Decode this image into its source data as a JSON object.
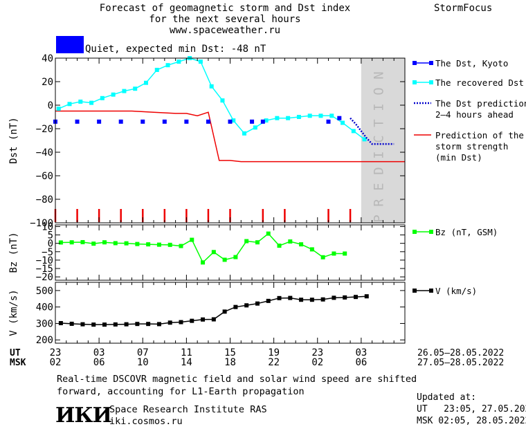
{
  "header": {
    "title_lines": [
      "Forecast of geomagnetic storm and Dst index",
      "for the next several hours",
      "www.spaceweather.ru"
    ],
    "brand": "StormFocus",
    "status_color": "#0000ff",
    "status_text": "Quiet, expected min Dst: -48 nT"
  },
  "footer": {
    "note_line1": "Real-time DSCOVR magnetic field and solar wind speed are shifted",
    "note_line2": "forward, accounting for L1-Earth propagation",
    "logo_text": "ИКИ",
    "institute": "Space Research Institute RAS",
    "website": "iki.cosmos.ru",
    "updated_label": "Updated at:",
    "updated_ut": "UT   23:05, 27.05.2022",
    "updated_msk": "MSK 02:05, 28.05.2022"
  },
  "time_axis": {
    "ut_label": "UT",
    "msk_label": "MSK",
    "ut_ticks": [
      "23",
      "03",
      "07",
      "11",
      "15",
      "19",
      "23",
      "03"
    ],
    "msk_ticks": [
      "02",
      "06",
      "10",
      "14",
      "18",
      "22",
      "02",
      "06"
    ],
    "ut_range": "26.05–28.05.2022",
    "msk_range": "27.05–28.05.2022"
  },
  "chart_data": [
    {
      "type": "line",
      "ylabel": "Dst (nT)",
      "ylim": [
        -100,
        40
      ],
      "yticks": [
        "40",
        "20",
        "0",
        "−20",
        "−40",
        "−60",
        "−80",
        "−100"
      ],
      "ytick_values": [
        40,
        20,
        0,
        -20,
        -40,
        -60,
        -80,
        -100
      ],
      "xlim": [
        23,
        55
      ],
      "prediction_band": {
        "x": [
          51,
          55
        ],
        "label": "PREDICTION",
        "color": "#d9d9d9"
      },
      "storm_markers_x": [
        23,
        25,
        27,
        29,
        31,
        33,
        35,
        37,
        39,
        42,
        44,
        48,
        50
      ],
      "series": [
        {
          "name": "The Dst, Kyoto",
          "style": "squares",
          "color": "#0000ff",
          "x": [
            23,
            25,
            27,
            29,
            31,
            33,
            35,
            37,
            39,
            41,
            42,
            48,
            49
          ],
          "y": [
            -14,
            -14,
            -14,
            -14,
            -14,
            -14,
            -14,
            -14,
            -14,
            -14,
            -14,
            -14,
            -11
          ]
        },
        {
          "name": "The recovered Dst",
          "style": "line-squares",
          "color": "#00ffff",
          "x": [
            23.3,
            24.3,
            25.3,
            26.3,
            27.3,
            28.3,
            29.3,
            30.3,
            31.3,
            32.3,
            33.3,
            34.3,
            35.3,
            36.3,
            37.3,
            38.3,
            39.3,
            40.3,
            41.3,
            42.3,
            43.3,
            44.3,
            45.3,
            46.3,
            47.3,
            48.3,
            49.3,
            50.3,
            51.3
          ],
          "y": [
            -3,
            1,
            3,
            2,
            6,
            9,
            12,
            14,
            19,
            30,
            34,
            37,
            40,
            37,
            16,
            4,
            -13,
            -24,
            -19,
            -13,
            -11,
            -11,
            -10,
            -9,
            -9,
            -9,
            -15,
            -22,
            -29
          ]
        },
        {
          "name": "The Dst prediction 2–4 hours ahead",
          "style": "dotted",
          "color": "#0000cc",
          "x": [
            50,
            50.5,
            51,
            51.5,
            52,
            53,
            54
          ],
          "y": [
            -11,
            -16,
            -22,
            -28,
            -33,
            -33,
            -33
          ]
        },
        {
          "name": "Prediction of the storm strength (min Dst)",
          "style": "line",
          "color": "#ee0000",
          "x": [
            23,
            24,
            26,
            28,
            30,
            32,
            34,
            35,
            36,
            37,
            38,
            39,
            40,
            42,
            44,
            46,
            48,
            51,
            55
          ],
          "y": [
            -5,
            -5,
            -5,
            -5,
            -5,
            -6,
            -7,
            -7,
            -9,
            -6,
            -47,
            -47,
            -48,
            -48,
            -48,
            -48,
            -48,
            -48,
            -48
          ]
        }
      ],
      "legend_lines": [
        [
          "The Dst, Kyoto"
        ],
        [
          "The recovered Dst"
        ],
        [
          "The Dst prediction",
          "2–4 hours ahead"
        ],
        [
          "Prediction of the",
          "storm strength",
          "(min Dst)"
        ]
      ]
    },
    {
      "type": "line",
      "ylabel": "Bz (nT)",
      "ylim": [
        -22,
        11
      ],
      "yticks": [
        "10",
        "5",
        "0",
        "−5",
        "−10",
        "−15",
        "−20"
      ],
      "ytick_values": [
        10,
        5,
        0,
        -5,
        -10,
        -15,
        -20
      ],
      "xlim": [
        23,
        55
      ],
      "series": [
        {
          "name": "Bz (nT, GSM)",
          "color": "#00ff00",
          "x": [
            23.5,
            24.5,
            25.5,
            26.5,
            27.5,
            28.5,
            29.5,
            30.5,
            31.5,
            32.5,
            33.5,
            34.5,
            35.5,
            36.5,
            37.5,
            38.5,
            39.5,
            40.5,
            41.5,
            42.5,
            43.5,
            44.5,
            45.5,
            46.5,
            47.5,
            48.5,
            49.5
          ],
          "y": [
            0.5,
            0.6,
            0.7,
            -0.2,
            0.6,
            0.1,
            0,
            -0.4,
            -0.6,
            -0.8,
            -0.9,
            -1.6,
            2.1,
            -11.4,
            -5.2,
            -9.8,
            -8.2,
            1.3,
            0.6,
            5.8,
            -1.4,
            1.1,
            -0.6,
            -3.6,
            -8.3,
            -6.1,
            -6.1
          ]
        }
      ],
      "legend_label": "Bz (nT, GSM)"
    },
    {
      "type": "line",
      "ylabel": "V (km/s)",
      "ylim": [
        180,
        550
      ],
      "yticks": [
        "500",
        "400",
        "300",
        "200"
      ],
      "ytick_values": [
        500,
        400,
        300,
        200
      ],
      "xlim": [
        23,
        55
      ],
      "series": [
        {
          "name": "V (km/s)",
          "color": "#000000",
          "x": [
            23.5,
            24.5,
            25.5,
            26.5,
            27.5,
            28.5,
            29.5,
            30.5,
            31.5,
            32.5,
            33.5,
            34.5,
            35.5,
            36.5,
            37.5,
            38.5,
            39.5,
            40.5,
            41.5,
            42.5,
            43.5,
            44.5,
            45.5,
            46.5,
            47.5,
            48.5,
            49.5,
            50.5,
            51.5
          ],
          "y": [
            302,
            298,
            295,
            293,
            293,
            294,
            295,
            297,
            297,
            296,
            305,
            308,
            316,
            324,
            325,
            372,
            400,
            410,
            421,
            437,
            454,
            455,
            444,
            444,
            446,
            456,
            458,
            461,
            465
          ]
        }
      ],
      "legend_label": "V (km/s)"
    }
  ]
}
